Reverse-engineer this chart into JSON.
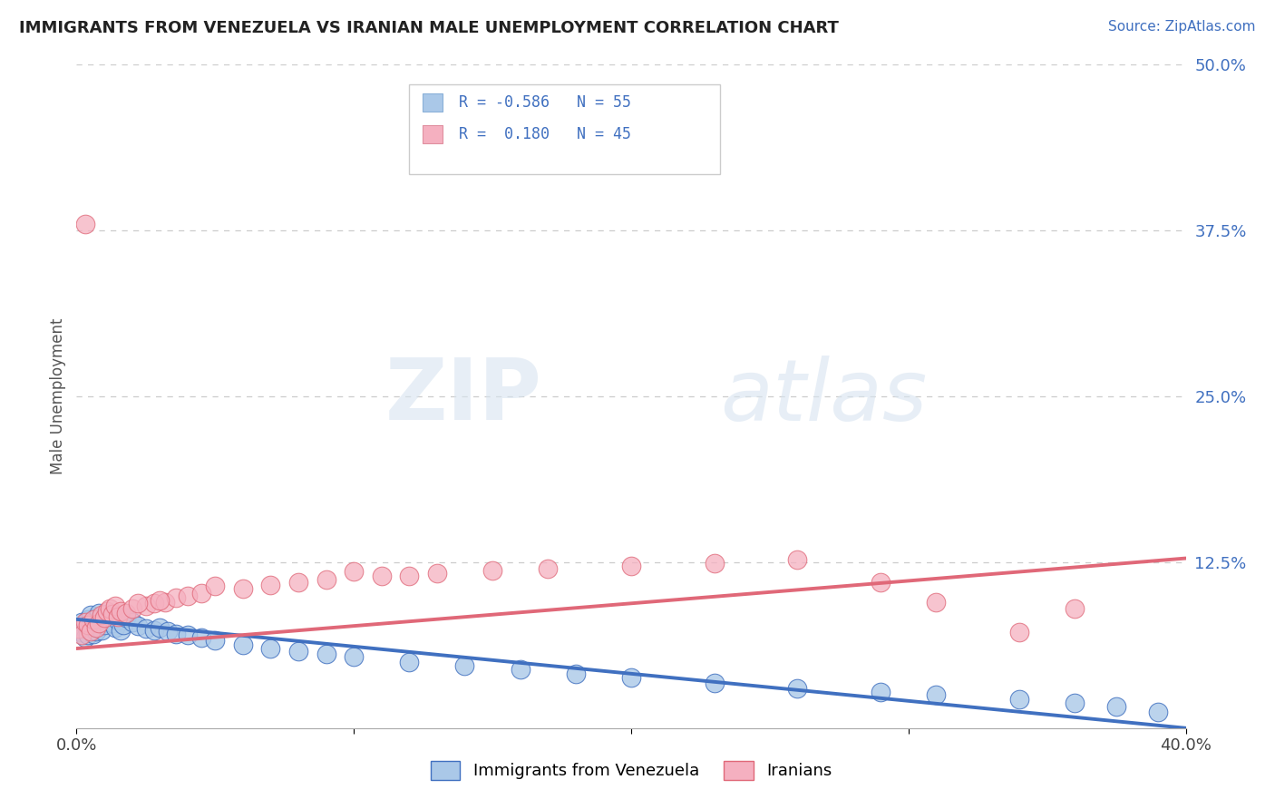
{
  "title": "IMMIGRANTS FROM VENEZUELA VS IRANIAN MALE UNEMPLOYMENT CORRELATION CHART",
  "source_text": "Source: ZipAtlas.com",
  "ylabel": "Male Unemployment",
  "xlim": [
    0.0,
    0.4
  ],
  "ylim": [
    0.0,
    0.5
  ],
  "yticks": [
    0.0,
    0.125,
    0.25,
    0.375,
    0.5
  ],
  "yticklabels": [
    "",
    "12.5%",
    "25.0%",
    "37.5%",
    "50.0%"
  ],
  "xticks": [
    0.0,
    0.1,
    0.2,
    0.3,
    0.4
  ],
  "xticklabels": [
    "0.0%",
    "",
    "",
    "",
    "40.0%"
  ],
  "series1_color": "#aac8e8",
  "series2_color": "#f5b0c0",
  "line1_color": "#4070c0",
  "line2_color": "#e06878",
  "watermark_zip": "ZIP",
  "watermark_atlas": "atlas",
  "background_color": "#ffffff",
  "blue_x": [
    0.001,
    0.002,
    0.002,
    0.003,
    0.003,
    0.004,
    0.004,
    0.005,
    0.005,
    0.006,
    0.006,
    0.007,
    0.007,
    0.008,
    0.008,
    0.009,
    0.009,
    0.01,
    0.01,
    0.011,
    0.012,
    0.013,
    0.014,
    0.015,
    0.016,
    0.017,
    0.018,
    0.02,
    0.022,
    0.025,
    0.028,
    0.03,
    0.033,
    0.036,
    0.04,
    0.045,
    0.05,
    0.06,
    0.07,
    0.08,
    0.09,
    0.1,
    0.12,
    0.14,
    0.16,
    0.18,
    0.2,
    0.23,
    0.26,
    0.29,
    0.31,
    0.34,
    0.36,
    0.375,
    0.39
  ],
  "blue_y": [
    0.075,
    0.08,
    0.072,
    0.078,
    0.068,
    0.082,
    0.07,
    0.076,
    0.085,
    0.079,
    0.071,
    0.083,
    0.073,
    0.077,
    0.087,
    0.074,
    0.08,
    0.082,
    0.078,
    0.086,
    0.084,
    0.079,
    0.076,
    0.081,
    0.074,
    0.078,
    0.083,
    0.08,
    0.077,
    0.075,
    0.074,
    0.076,
    0.073,
    0.071,
    0.07,
    0.068,
    0.066,
    0.063,
    0.06,
    0.058,
    0.056,
    0.054,
    0.05,
    0.047,
    0.044,
    0.041,
    0.038,
    0.034,
    0.03,
    0.027,
    0.025,
    0.022,
    0.019,
    0.016,
    0.012
  ],
  "pink_x": [
    0.001,
    0.002,
    0.003,
    0.003,
    0.004,
    0.005,
    0.006,
    0.007,
    0.008,
    0.009,
    0.01,
    0.011,
    0.012,
    0.013,
    0.014,
    0.015,
    0.016,
    0.018,
    0.02,
    0.025,
    0.028,
    0.032,
    0.036,
    0.04,
    0.045,
    0.06,
    0.07,
    0.08,
    0.09,
    0.11,
    0.13,
    0.15,
    0.17,
    0.2,
    0.23,
    0.26,
    0.29,
    0.31,
    0.34,
    0.36,
    0.03,
    0.022,
    0.05,
    0.12,
    0.1
  ],
  "pink_y": [
    0.075,
    0.07,
    0.08,
    0.38,
    0.078,
    0.073,
    0.082,
    0.076,
    0.079,
    0.085,
    0.083,
    0.088,
    0.09,
    0.086,
    0.092,
    0.084,
    0.088,
    0.087,
    0.09,
    0.092,
    0.094,
    0.095,
    0.098,
    0.1,
    0.102,
    0.105,
    0.108,
    0.11,
    0.112,
    0.115,
    0.117,
    0.119,
    0.12,
    0.122,
    0.124,
    0.127,
    0.11,
    0.095,
    0.072,
    0.09,
    0.096,
    0.094,
    0.107,
    0.115,
    0.118
  ],
  "line1_x": [
    0.0,
    0.4
  ],
  "line1_y": [
    0.082,
    0.0
  ],
  "line2_x": [
    0.0,
    0.4
  ],
  "line2_y": [
    0.06,
    0.128
  ]
}
